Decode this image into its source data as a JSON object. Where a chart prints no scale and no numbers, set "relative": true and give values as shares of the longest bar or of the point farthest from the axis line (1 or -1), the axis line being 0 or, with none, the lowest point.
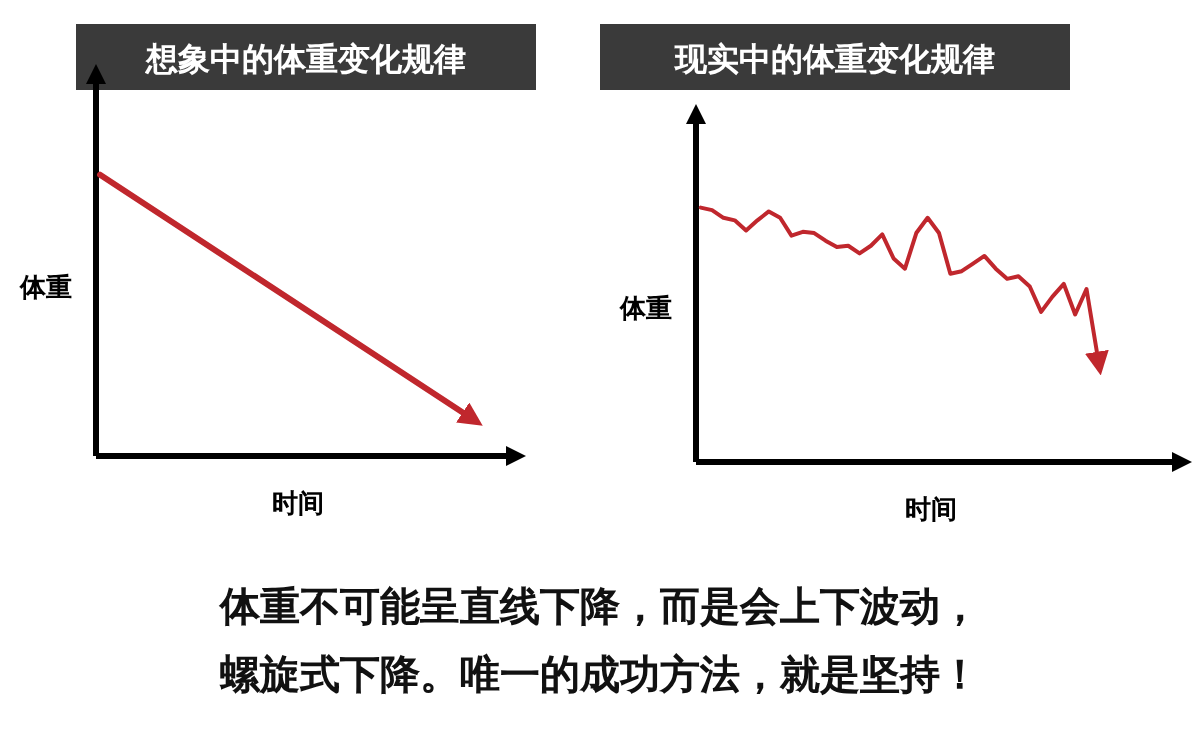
{
  "chart_data": [
    {
      "type": "line",
      "relative": true,
      "title": "想象中的体重变化规律",
      "xlabel": "时间",
      "ylabel": "体重",
      "categories": [
        null,
        null
      ],
      "series": [
        {
          "color": "#c0272d",
          "values": [
            1,
            0.143
          ]
        }
      ]
    },
    {
      "type": "line",
      "relative": true,
      "title": "现实中的体重变化规律",
      "xlabel": "时间",
      "ylabel": "体重",
      "categories": [
        null,
        null,
        null,
        null,
        null,
        null,
        null,
        null,
        null,
        null,
        null,
        null,
        null,
        null,
        null,
        null,
        null,
        null,
        null,
        null,
        null,
        null,
        null,
        null,
        null,
        null,
        null,
        null,
        null,
        null,
        null,
        null,
        null,
        null,
        null,
        null
      ],
      "series": [
        {
          "color": "#c0272d",
          "values": [
            1.0,
            0.99,
            0.96,
            0.95,
            0.91,
            0.95,
            0.985,
            0.96,
            0.89,
            0.905,
            0.9,
            0.87,
            0.845,
            0.85,
            0.82,
            0.85,
            0.895,
            0.8,
            0.76,
            0.9,
            0.96,
            0.9,
            0.74,
            0.75,
            0.78,
            0.81,
            0.76,
            0.72,
            0.73,
            0.69,
            0.59,
            0.65,
            0.7,
            0.58,
            0.68,
            0.41
          ]
        }
      ],
      "annotations": [
        "体重不可能呈直线下降，而是会上下波动，",
        "螺旋式下降。唯一的成功方法，就是坚持！"
      ]
    }
  ]
}
